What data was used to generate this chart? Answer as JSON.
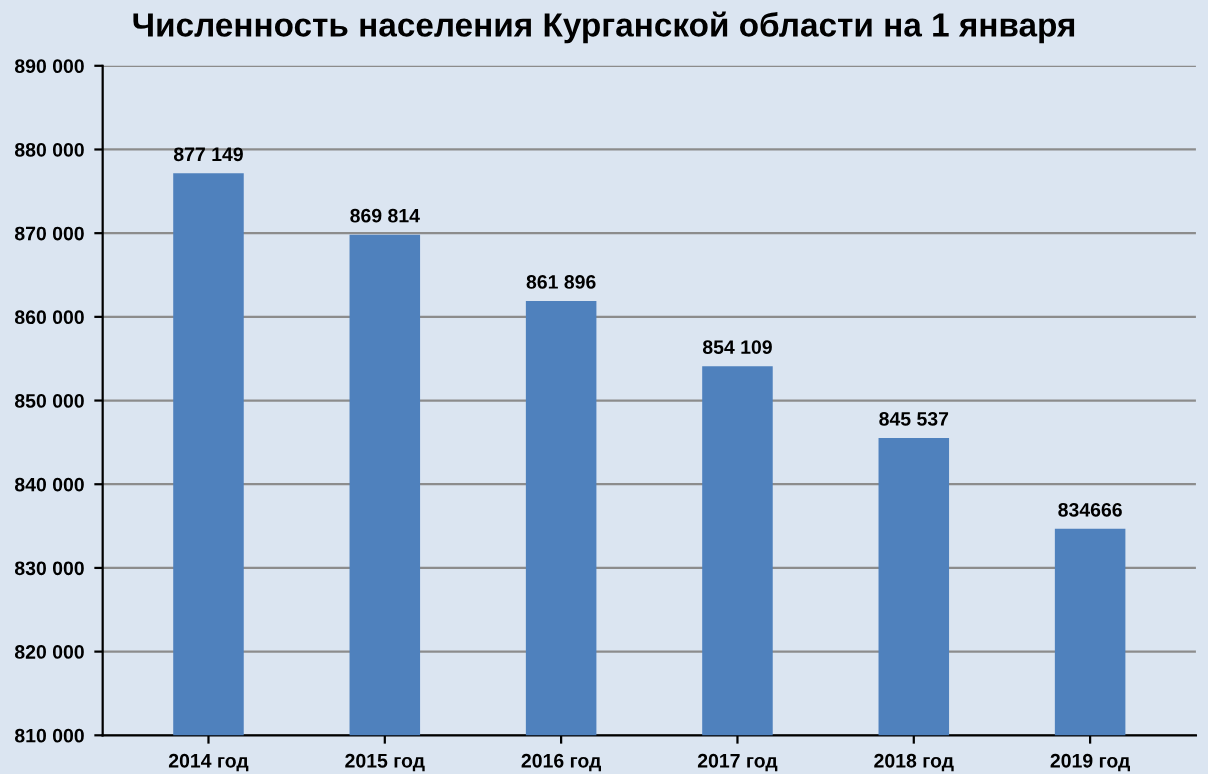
{
  "chart_data": {
    "type": "bar",
    "title": "Численность населения Курганской области на 1 января",
    "categories": [
      "2014 год",
      "2015 год",
      "2016 год",
      "2017 год",
      "2018 год",
      "2019 год"
    ],
    "values": [
      877149,
      869814,
      861896,
      854109,
      845537,
      834666
    ],
    "value_labels": [
      "877 149",
      "869 814",
      "861 896",
      "854 109",
      "845 537",
      "834666"
    ],
    "color": "#4f81bd",
    "ylim": [
      810000,
      890000
    ],
    "yticks": [
      {
        "value": 810000,
        "label": "810 000"
      },
      {
        "value": 820000,
        "label": "820 000"
      },
      {
        "value": 830000,
        "label": "830 000"
      },
      {
        "value": 840000,
        "label": "840 000"
      },
      {
        "value": 850000,
        "label": "850 000"
      },
      {
        "value": 860000,
        "label": "860 000"
      },
      {
        "value": 870000,
        "label": "870 000"
      },
      {
        "value": 880000,
        "label": "880 000"
      },
      {
        "value": 890000,
        "label": "890 000"
      }
    ],
    "grid": "y"
  }
}
